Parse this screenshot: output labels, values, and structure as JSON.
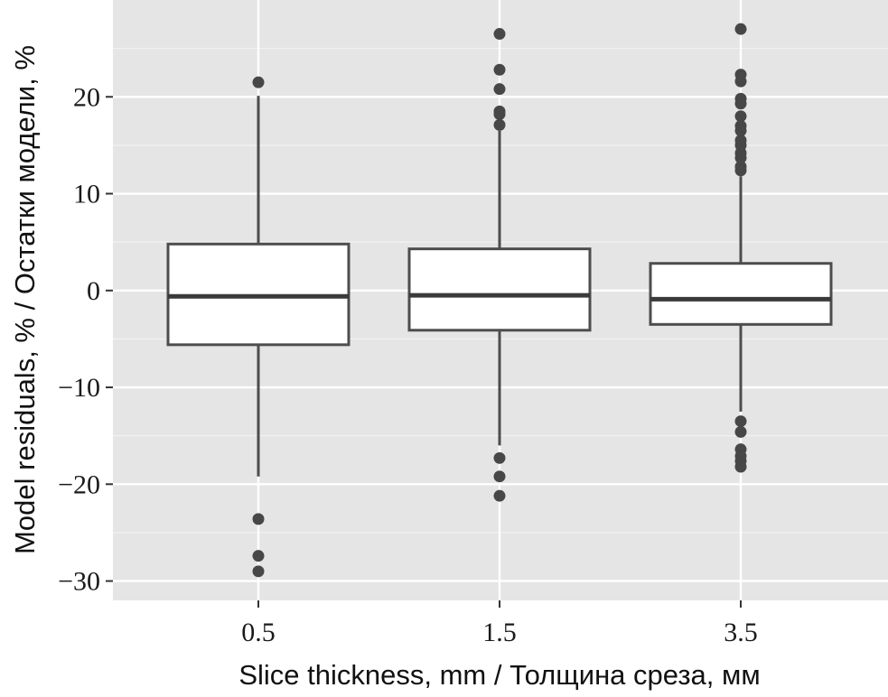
{
  "chart_data": {
    "type": "boxplot",
    "xlabel": "Slice thickness, mm / Толщина среза, мм",
    "ylabel": "Model residuals, % / Остатки модели, %",
    "ylim": [
      -32,
      30
    ],
    "yticks": [
      -30,
      -20,
      -10,
      0,
      10,
      20
    ],
    "ytick_labels": [
      "−30",
      "−20",
      "−10",
      "0",
      "10",
      "20"
    ],
    "categories": [
      "0.5",
      "1.5",
      "3.5"
    ],
    "grid": true,
    "legend": "none",
    "boxes": [
      {
        "category": "0.5",
        "whisker_low": -19.2,
        "q1": -5.6,
        "median": -0.6,
        "q3": 4.8,
        "whisker_high": 20.1,
        "outliers": [
          21.5,
          -23.6,
          -27.4,
          -29.0
        ]
      },
      {
        "category": "1.5",
        "whisker_low": -16.0,
        "q1": -4.1,
        "median": -0.5,
        "q3": 4.3,
        "whisker_high": 16.5,
        "outliers": [
          26.5,
          22.8,
          20.8,
          18.5,
          18.2,
          17.1,
          -17.3,
          -19.2,
          -21.2
        ]
      },
      {
        "category": "3.5",
        "whisker_low": -12.5,
        "q1": -3.5,
        "median": -0.9,
        "q3": 2.8,
        "whisker_high": 11.8,
        "outliers": [
          27.0,
          22.3,
          21.6,
          19.8,
          19.3,
          18.0,
          17.0,
          16.5,
          15.5,
          15.0,
          14.2,
          13.7,
          12.8,
          12.4,
          -13.5,
          -14.6,
          -16.4,
          -17.1,
          -17.6,
          -18.2
        ]
      }
    ],
    "colors": {
      "panel": "#e5e5e5",
      "grid_major": "#ffffff",
      "box_fill": "#ffffff",
      "box_stroke": "#4d4d4d",
      "outlier": "#474747"
    }
  }
}
